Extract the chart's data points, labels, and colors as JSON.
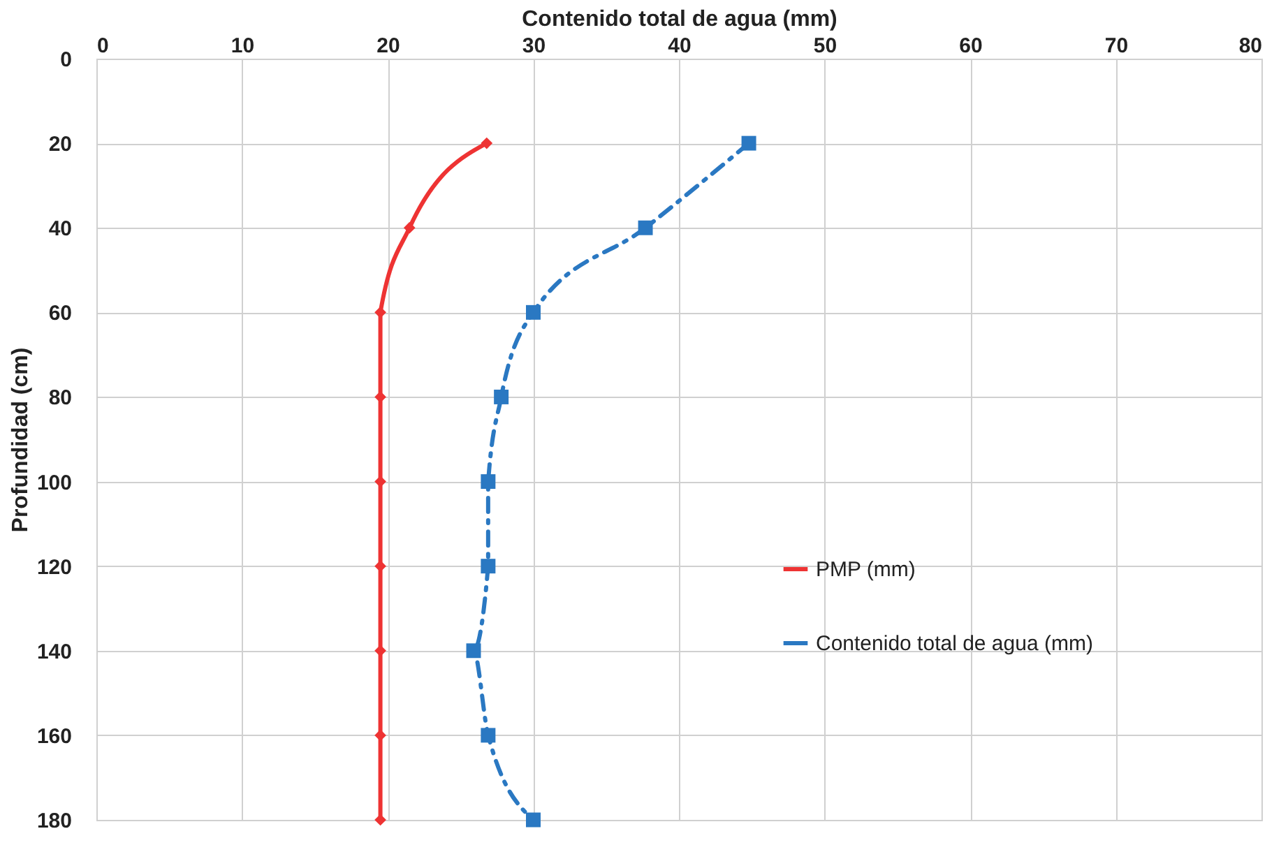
{
  "chart_data": {
    "type": "line",
    "orientation": "horizontal",
    "xlabel": "Contenido total de agua (mm)",
    "ylabel": "Profundidad (cm)",
    "categories": [
      "0",
      "20",
      "40",
      "60",
      "80",
      "100",
      "120",
      "140",
      "160",
      "180"
    ],
    "xlim": [
      0,
      80
    ],
    "xticks": [
      0,
      10,
      20,
      30,
      40,
      50,
      60,
      70,
      80
    ],
    "grid": true,
    "legend": "bottom right",
    "series": [
      {
        "name": "PMP (mm)",
        "color": "#ee3333",
        "marker": "diamond",
        "line_style": "solid",
        "values": [
          null,
          26.8,
          21.5,
          19.5,
          19.5,
          19.5,
          19.5,
          19.5,
          19.5,
          19.5
        ]
      },
      {
        "name": "Contenido total de agua (mm)",
        "color": "#2a78c2",
        "marker": "square",
        "line_style": "dashed",
        "values": [
          null,
          44.8,
          37.7,
          30,
          27.8,
          26.9,
          26.9,
          25.9,
          26.9,
          30
        ]
      }
    ]
  }
}
